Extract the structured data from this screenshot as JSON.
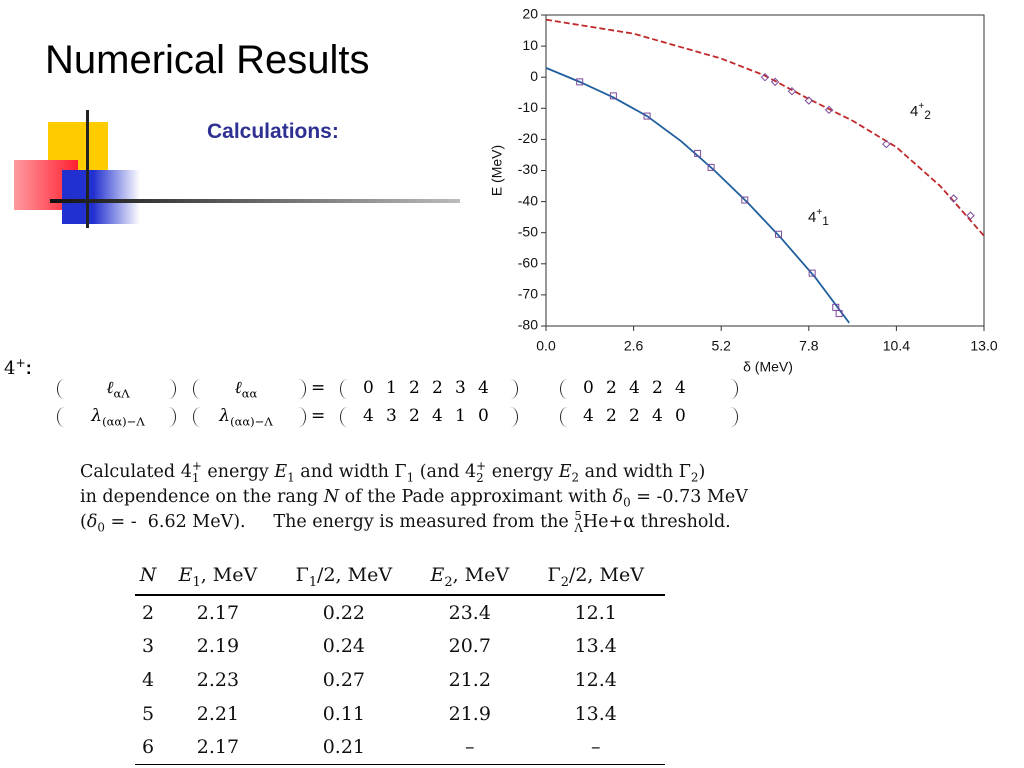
{
  "header": {
    "title": "Numerical Results",
    "subtitle": "Calculations:"
  },
  "state_label": {
    "base": "4",
    "sup": "+",
    "colon": ":"
  },
  "matrix": {
    "eq": "=",
    "rows": [
      {
        "left": [
          {
            "base": "ℓ",
            "sub": "αΛ"
          },
          {
            "base": "ℓ",
            "sub": "αα"
          }
        ],
        "v1": [
          0,
          1,
          2,
          2,
          3,
          4
        ],
        "v2": [
          0,
          2,
          4,
          2,
          4
        ]
      },
      {
        "left": [
          {
            "base": "λ",
            "sub": "(αα)−Λ"
          },
          {
            "base": "λ",
            "sub": "(αα)−Λ"
          }
        ],
        "v1": [
          4,
          3,
          2,
          4,
          1,
          0
        ],
        "v2": [
          4,
          2,
          2,
          4,
          0
        ]
      }
    ]
  },
  "caption": [
    [
      "Calculated ",
      {
        "base": "4",
        "sup": "+",
        "sub": "1"
      },
      " energy ",
      {
        "base": "E",
        "sub": "1"
      },
      " and width ",
      {
        "base": "Γ",
        "sub": "1"
      },
      " (and ",
      {
        "base": "4",
        "sup": "+",
        "sub": "2"
      },
      " energy ",
      {
        "base": "E",
        "sub": "2"
      },
      " and width ",
      {
        "base": "Γ",
        "sub": "2"
      },
      ")"
    ],
    [
      "in dependence on the rang ",
      {
        "base": "N"
      },
      " of the Pade approximant with ",
      {
        "base": "δ",
        "sub": "0"
      },
      " = -0.73 MeV"
    ],
    [
      "(",
      {
        "base": "δ",
        "sub": "0"
      },
      " = -  6.62 MeV).     The energy is measured from the ",
      {
        "base": "He",
        "sup": "5",
        "sub": "Λ",
        "pre": true
      },
      "+α threshold."
    ]
  ],
  "table": {
    "headers": [
      [
        {
          "base": "N"
        }
      ],
      [
        {
          "base": "E",
          "sub": "1"
        },
        ", MeV"
      ],
      [
        {
          "base": "Γ",
          "sub": "1"
        },
        "/2, MeV"
      ],
      [
        {
          "base": "E",
          "sub": "2"
        },
        ", MeV"
      ],
      [
        {
          "base": "Γ",
          "sub": "2"
        },
        "/2, MeV"
      ]
    ],
    "rows": [
      [
        2,
        2.17,
        0.22,
        23.4,
        12.1
      ],
      [
        3,
        2.19,
        0.24,
        20.7,
        13.4
      ],
      [
        4,
        2.23,
        0.27,
        21.2,
        12.4
      ],
      [
        5,
        2.21,
        0.11,
        21.9,
        13.4
      ],
      [
        6,
        2.17,
        0.21,
        "–",
        "–"
      ]
    ]
  },
  "chart_data": {
    "type": "line",
    "x_label": "δ (MeV)",
    "y_label": "E (MeV)",
    "xlim": [
      0,
      13
    ],
    "ylim": [
      -80,
      20
    ],
    "xticks": [
      {
        "value": 0,
        "label": "0.0"
      },
      2.6,
      5.2,
      7.8,
      10.4,
      {
        "value": 13,
        "label": "13.0"
      }
    ],
    "yticks": [
      -80,
      -70,
      -60,
      -50,
      -40,
      -30,
      -20,
      -10,
      0,
      10,
      20
    ],
    "marker_color": "#7b4a9c",
    "series": [
      {
        "name": {
          "base": "4",
          "sup": "+",
          "sub": "1"
        },
        "color": "#1f5f9e",
        "dashed": false,
        "x": [
          0,
          1,
          2,
          3,
          4,
          5,
          6,
          7,
          8,
          9
        ],
        "values": [
          3,
          -1.5,
          -6.5,
          -12.5,
          -20.5,
          -30,
          -40.5,
          -52,
          -64.5,
          -79
        ],
        "markers": {
          "x": [
            1.0,
            2.0,
            3.0,
            4.5,
            4.9,
            5.9,
            6.9,
            7.9,
            8.6,
            8.7
          ],
          "values": [
            -1.5,
            -6,
            -12.5,
            -24.5,
            -29,
            -39.5,
            -50.5,
            -63,
            -74,
            -76
          ]
        }
      },
      {
        "name": {
          "base": "4",
          "sup": "+",
          "sub": "2"
        },
        "color": "#c0282a",
        "dashed": true,
        "x": [
          0,
          2.6,
          5.2,
          6.5,
          7.8,
          9.1,
          10.4,
          11.7,
          13
        ],
        "values": [
          18.5,
          14,
          6,
          0.5,
          -7,
          -14,
          -22.5,
          -35,
          -51
        ],
        "markers": {
          "x": [
            6.5,
            6.8,
            7.3,
            7.8,
            8.4,
            10.1,
            12.1,
            12.6
          ],
          "values": [
            0,
            -1.5,
            -4.5,
            -7.5,
            -10.5,
            -21.5,
            -39,
            -44.5
          ]
        }
      }
    ]
  }
}
